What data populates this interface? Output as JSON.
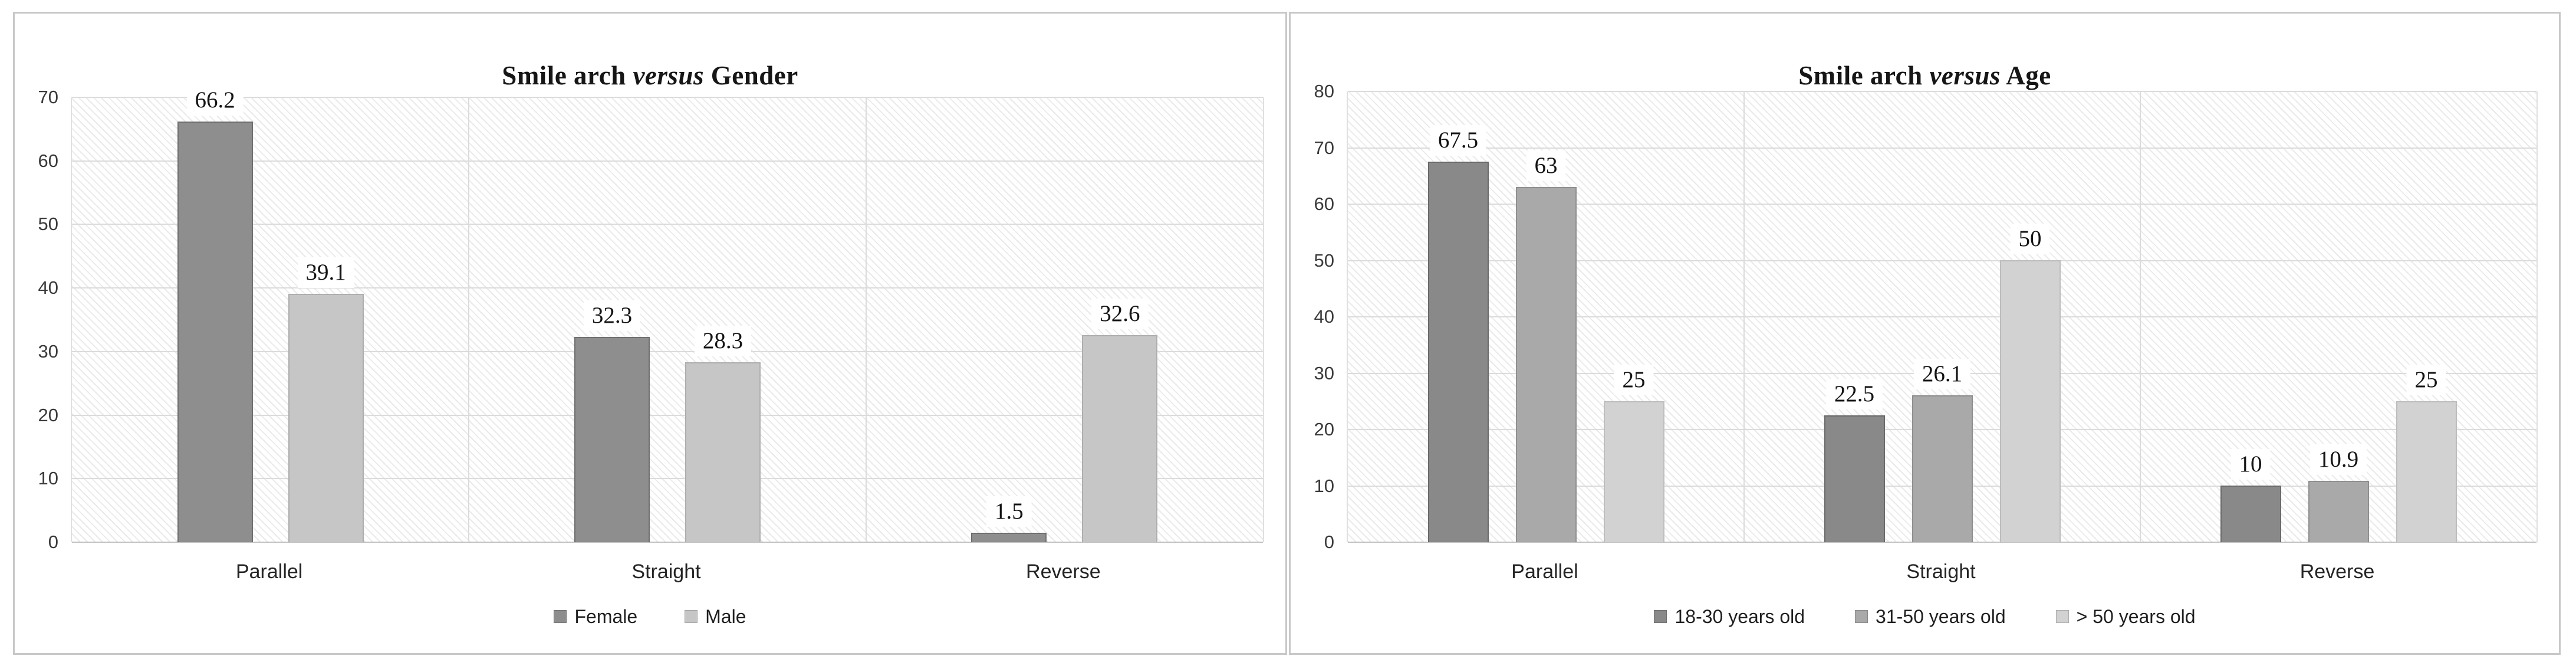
{
  "figure": {
    "background": "#ffffff",
    "panel_border_color": "#c8c8c8",
    "gridline_color": "#dbdbdb",
    "hatch_pattern": "light-downward-diagonal"
  },
  "chart_data": [
    {
      "type": "bar",
      "title": "Smile arch versus Gender",
      "title_parts": {
        "prefix": "Smile arch ",
        "italic": "versus",
        "suffix": " Gender"
      },
      "categories": [
        "Parallel",
        "Straight",
        "Reverse"
      ],
      "series": [
        {
          "name": "Female",
          "values": [
            66.2,
            32.3,
            1.5
          ],
          "color": "#8e8e8e",
          "border_color": "#6f6f6f"
        },
        {
          "name": "Male",
          "values": [
            39.1,
            28.3,
            32.6
          ],
          "color": "#c6c6c6",
          "border_color": "#aeaeae"
        }
      ],
      "data_labels": [
        "66.2",
        "39.1",
        "32.3",
        "28.3",
        "1.5",
        "32.6"
      ],
      "ylabel": "",
      "xlabel": "",
      "ylim": [
        0,
        70
      ],
      "yticks": [
        0,
        10,
        20,
        30,
        40,
        50,
        60,
        70
      ],
      "grid": true,
      "legend_position": "bottom"
    },
    {
      "type": "bar",
      "title": "Smile arch versus Age",
      "title_parts": {
        "prefix": "Smile arch ",
        "italic": "versus",
        "suffix": " Age"
      },
      "categories": [
        "Parallel",
        "Straight",
        "Reverse"
      ],
      "series": [
        {
          "name": "18-30 years old",
          "values": [
            67.5,
            22.5,
            10
          ],
          "color": "#898989",
          "border_color": "#6a6a6a"
        },
        {
          "name": "31-50 years old",
          "values": [
            63,
            26.1,
            10.9
          ],
          "color": "#a9a9a9",
          "border_color": "#8f8f8f"
        },
        {
          "name": "> 50 years old",
          "values": [
            25,
            50,
            25
          ],
          "color": "#d2d2d2",
          "border_color": "#bdbdbd"
        }
      ],
      "data_labels": [
        "67.5",
        "63",
        "25",
        "22.5",
        "26.1",
        "50",
        "10",
        "10.9",
        "25"
      ],
      "ylabel": "",
      "xlabel": "",
      "ylim": [
        0,
        80
      ],
      "yticks": [
        0,
        10,
        20,
        30,
        40,
        50,
        60,
        70,
        80
      ],
      "grid": true,
      "legend_position": "bottom"
    }
  ]
}
